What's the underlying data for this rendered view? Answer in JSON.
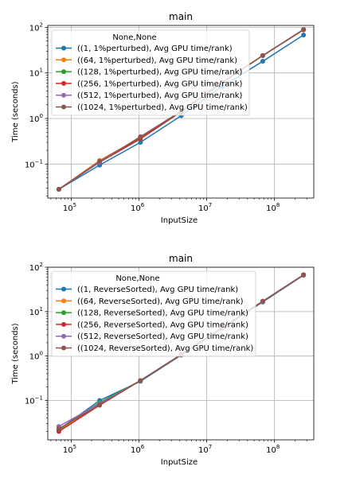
{
  "chart_data": [
    {
      "type": "line",
      "title": "main",
      "xlabel": "InputSize",
      "ylabel": "Time (seconds)",
      "xscale": "log",
      "yscale": "log",
      "xlim": [
        45000,
        380000000
      ],
      "ylim": [
        0.018,
        110
      ],
      "x_ticks": [
        {
          "value": 100000,
          "base": "10",
          "exp": "5"
        },
        {
          "value": 1000000,
          "base": "10",
          "exp": "6"
        },
        {
          "value": 10000000,
          "base": "10",
          "exp": "7"
        },
        {
          "value": 100000000,
          "base": "10",
          "exp": "8"
        }
      ],
      "y_ticks": [
        {
          "value": 0.1,
          "base": "10",
          "exp": "−1"
        },
        {
          "value": 1,
          "base": "10",
          "exp": "0"
        },
        {
          "value": 10,
          "base": "10",
          "exp": "1"
        },
        {
          "value": 100,
          "base": "10",
          "exp": "2"
        }
      ],
      "grid": true,
      "legend": {
        "title": "None,None",
        "placement": "upper-left"
      },
      "x": [
        65536,
        262144,
        1048576,
        4194304,
        16777216,
        67108864,
        268435456
      ],
      "series": [
        {
          "name": "((1, 1%perturbed), Avg GPU time/rank)",
          "color": "#1f77b4",
          "values": [
            0.028,
            0.095,
            0.3,
            1.15,
            5.0,
            18.0,
            68.0
          ]
        },
        {
          "name": "((64, 1%perturbed), Avg GPU time/rank)",
          "color": "#ff7f0e",
          "values": [
            0.028,
            0.12,
            0.38,
            1.45,
            6.2,
            24.0,
            88.0
          ]
        },
        {
          "name": "((128, 1%perturbed), Avg GPU time/rank)",
          "color": "#2ca02c",
          "values": [
            0.028,
            0.11,
            0.36,
            1.4,
            6.0,
            24.0,
            88.0
          ]
        },
        {
          "name": "((256, 1%perturbed), Avg GPU time/rank)",
          "color": "#d62728",
          "values": [
            0.028,
            0.11,
            0.36,
            1.42,
            6.1,
            24.0,
            88.0
          ]
        },
        {
          "name": "((512, 1%perturbed), Avg GPU time/rank)",
          "color": "#9467bd",
          "values": [
            0.028,
            0.11,
            0.4,
            1.45,
            6.2,
            24.0,
            89.0
          ]
        },
        {
          "name": "((1024, 1%perturbed), Avg GPU time/rank)",
          "color": "#8c564b",
          "values": [
            0.028,
            0.115,
            0.39,
            1.45,
            6.2,
            24.0,
            90.0
          ]
        }
      ]
    },
    {
      "type": "line",
      "title": "main",
      "xlabel": "InputSize",
      "ylabel": "Time (seconds)",
      "xscale": "log",
      "yscale": "log",
      "xlim": [
        45000,
        380000000
      ],
      "ylim": [
        0.013,
        100
      ],
      "x_ticks": [
        {
          "value": 100000,
          "base": "10",
          "exp": "5"
        },
        {
          "value": 1000000,
          "base": "10",
          "exp": "6"
        },
        {
          "value": 10000000,
          "base": "10",
          "exp": "7"
        },
        {
          "value": 100000000,
          "base": "10",
          "exp": "8"
        }
      ],
      "y_ticks": [
        {
          "value": 0.1,
          "base": "10",
          "exp": "−1"
        },
        {
          "value": 1,
          "base": "10",
          "exp": "0"
        },
        {
          "value": 10,
          "base": "10",
          "exp": "1"
        },
        {
          "value": 100,
          "base": "10",
          "exp": "2"
        }
      ],
      "grid": true,
      "legend": {
        "title": "None,None",
        "placement": "upper-left"
      },
      "x": [
        65536,
        262144,
        1048576,
        4194304,
        16777216,
        67108864,
        268435456
      ],
      "series": [
        {
          "name": "((1, ReverseSorted), Avg GPU time/rank)",
          "color": "#1f77b4",
          "values": [
            0.022,
            0.1,
            0.27,
            1.05,
            4.2,
            16.5,
            66.0
          ]
        },
        {
          "name": "((64, ReverseSorted), Avg GPU time/rank)",
          "color": "#ff7f0e",
          "values": [
            0.021,
            0.08,
            0.28,
            1.08,
            4.3,
            17.0,
            67.0
          ]
        },
        {
          "name": "((128, ReverseSorted), Avg GPU time/rank)",
          "color": "#2ca02c",
          "values": [
            0.022,
            0.09,
            0.28,
            1.07,
            4.3,
            17.0,
            67.0
          ]
        },
        {
          "name": "((256, ReverseSorted), Avg GPU time/rank)",
          "color": "#d62728",
          "values": [
            0.02,
            0.078,
            0.28,
            1.08,
            4.3,
            17.2,
            67.0
          ]
        },
        {
          "name": "((512, ReverseSorted), Avg GPU time/rank)",
          "color": "#9467bd",
          "values": [
            0.026,
            0.085,
            0.28,
            1.08,
            4.3,
            17.0,
            67.0
          ]
        },
        {
          "name": "((1024, ReverseSorted), Avg GPU time/rank)",
          "color": "#8c564b",
          "values": [
            0.023,
            0.08,
            0.28,
            1.08,
            4.3,
            17.2,
            68.0
          ]
        }
      ]
    }
  ]
}
